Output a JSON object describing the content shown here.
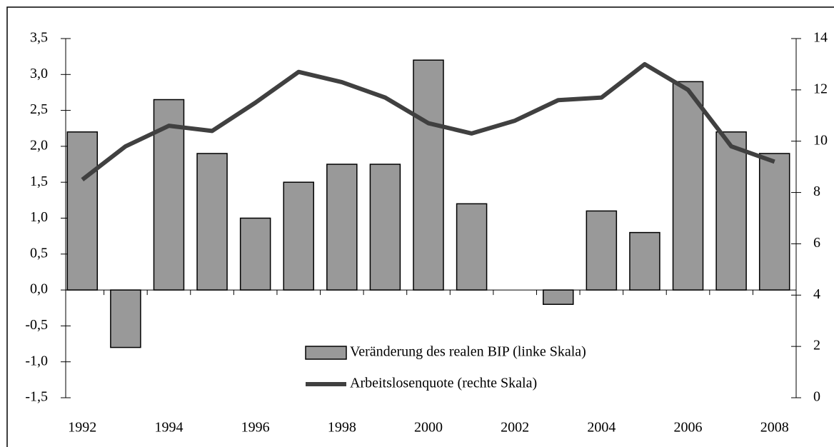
{
  "chart_data": {
    "type": "bar-line",
    "categories": [
      "1992",
      null,
      "1994",
      null,
      "1996",
      null,
      "1998",
      null,
      "2000",
      null,
      "2002",
      null,
      "2004",
      null,
      "2006",
      null,
      "2008"
    ],
    "series": [
      {
        "name": "Veränderung des realen BIP (linke Skala)",
        "type": "bar",
        "color": "#999999",
        "values": [
          2.2,
          -0.8,
          2.65,
          1.9,
          1.0,
          1.5,
          1.75,
          1.75,
          3.2,
          1.2,
          0,
          -0.2,
          1.1,
          0.8,
          2.9,
          2.2,
          1.9
        ]
      },
      {
        "name": "Arbeitslosenquote (rechte Skala)",
        "type": "line",
        "axis": "y2",
        "color": "#404040",
        "values": [
          8.5,
          9.8,
          10.6,
          10.4,
          11.5,
          12.7,
          12.3,
          11.7,
          10.7,
          10.3,
          10.8,
          11.6,
          11.7,
          13.0,
          12.0,
          9.8,
          9.2
        ]
      }
    ],
    "ylim": [
      -1.5,
      3.5
    ],
    "yticks": [
      {
        "value": -1.5,
        "label": "-1,5"
      },
      {
        "value": -1,
        "label": "-1,0"
      },
      {
        "value": -0.5,
        "label": "-0,5"
      },
      {
        "value": 0,
        "label": "0,0"
      },
      {
        "value": 0.5,
        "label": "0,5"
      },
      {
        "value": 1,
        "label": "1,0"
      },
      {
        "value": 1.5,
        "label": "1,5"
      },
      {
        "value": 2,
        "label": "2,0"
      },
      {
        "value": 2.5,
        "label": "2,5"
      },
      {
        "value": 3,
        "label": "3,0"
      },
      {
        "value": 3.5,
        "label": "3,5"
      }
    ],
    "y2lim": [
      0,
      14
    ],
    "y2ticks": [
      0,
      2,
      4,
      6,
      8,
      10,
      12,
      14
    ]
  }
}
